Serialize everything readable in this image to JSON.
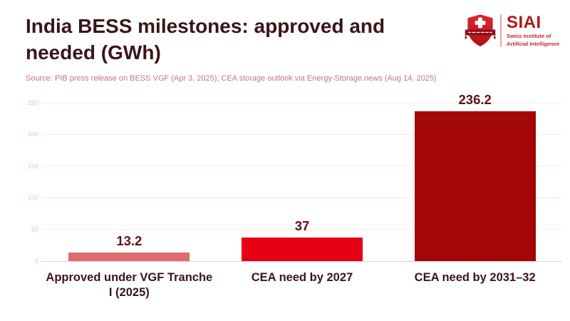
{
  "header": {
    "title": "India BESS milestones: approved and needed (GWh)",
    "source": "Source: PIB press release on BESS VGF (Apr 3, 2025); CEA storage outlook via Energy-Storage.news (Aug 14, 2025)"
  },
  "logo": {
    "acronym": "SIAI",
    "tagline_line1": "Swiss Institute of",
    "tagline_line2": "Artificial Intelligence",
    "shield_icon": "swiss-shield-icon"
  },
  "chart_data": {
    "type": "bar",
    "title": "India BESS milestones: approved and needed (GWh)",
    "unit": "GWh",
    "categories": [
      "Approved under VGF Tranche I (2025)",
      "CEA need by 2027",
      "CEA need by 2031–32"
    ],
    "values": [
      13.2,
      37,
      236.2
    ],
    "value_labels": [
      "13.2",
      "37",
      "236.2"
    ],
    "bar_colors": [
      "#e06d6d",
      "#e60012",
      "#a40708"
    ],
    "xlabel": "",
    "ylabel": "",
    "ylim": [
      0,
      250
    ],
    "yticks": [
      0,
      50,
      100,
      150,
      200,
      250
    ],
    "grid": "horizontal",
    "legend": "none"
  },
  "colors": {
    "background": "#ffffff",
    "title_text": "#3b141a",
    "source_text": "#c2767e",
    "value_label_text": "#5f1116",
    "category_label_text": "#3b141a",
    "tick_label_text": "#f2bcc0",
    "gridline": "#fbe9e9",
    "axis_line": "#d8d2d2",
    "bar_approved": "#e06d6d",
    "bar_need_2027": "#e60012",
    "bar_need_2031_32": "#a40708",
    "logo_red": "#b3161c"
  }
}
